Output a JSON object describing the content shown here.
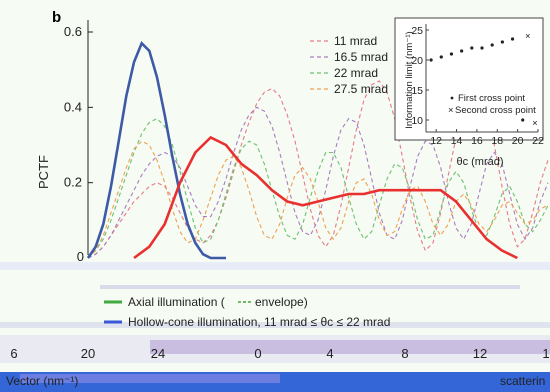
{
  "chart_data": {
    "type": "line",
    "panel_label": "b",
    "ylabel": "PCTF",
    "ylim": [
      0,
      0.6
    ],
    "yticks": [
      0.2,
      0.4,
      0.6
    ],
    "xlim": [
      0,
      30
    ],
    "axis_tick_labels": [
      "6",
      "20",
      "24",
      "0",
      "4",
      "8",
      "12",
      "1"
    ],
    "axis_label": "Vector (nm⁻¹)",
    "axis_label_right": "scatterin",
    "series": [
      {
        "name": "11 mrad",
        "color": "#e87a86",
        "style": "dashed",
        "x": [
          0,
          0.5,
          1,
          1.5,
          2,
          2.5,
          3,
          3.5,
          4,
          4.5,
          5,
          5.5,
          6,
          6.5,
          7,
          7.5,
          8,
          8.5,
          9,
          9.5,
          10,
          10.5,
          11,
          11.5,
          12,
          12.5,
          13,
          13.5,
          14,
          14.5,
          15,
          15.5,
          16,
          16.5,
          17,
          17.5,
          18,
          18.5,
          19,
          19.5,
          20,
          20.5,
          21,
          21.5,
          22,
          22.5,
          23,
          23.5,
          24,
          24.5,
          25,
          25.5,
          26,
          26.5,
          27,
          27.5,
          28,
          28.5,
          29,
          29.5,
          30
        ],
        "y": [
          0,
          0.01,
          0.03,
          0.06,
          0.09,
          0.12,
          0.15,
          0.17,
          0.19,
          0.2,
          0.19,
          0.16,
          0.12,
          0.08,
          0.05,
          0.04,
          0.06,
          0.1,
          0.16,
          0.23,
          0.3,
          0.36,
          0.41,
          0.44,
          0.45,
          0.43,
          0.38,
          0.31,
          0.22,
          0.13,
          0.06,
          0.03,
          0.06,
          0.14,
          0.24,
          0.34,
          0.42,
          0.46,
          0.47,
          0.44,
          0.37,
          0.27,
          0.16,
          0.07,
          0.02,
          0.04,
          0.12,
          0.22,
          0.32,
          0.4,
          0.45,
          0.45,
          0.4,
          0.3,
          0.19,
          0.09,
          0.03,
          0.05,
          0.12,
          0.2,
          0.26
        ]
      },
      {
        "name": "16.5 mrad",
        "color": "#a97cbf",
        "style": "dashed",
        "x": [
          0,
          0.5,
          1,
          1.5,
          2,
          2.5,
          3,
          3.5,
          4,
          4.5,
          5,
          5.5,
          6,
          6.5,
          7,
          7.5,
          8,
          8.5,
          9,
          9.5,
          10,
          10.5,
          11,
          11.5,
          12,
          12.5,
          13,
          13.5,
          14,
          14.5,
          15,
          15.5,
          16,
          16.5,
          17,
          17.5,
          18,
          18.5,
          19,
          19.5,
          20,
          20.5,
          21,
          21.5,
          22,
          22.5,
          23,
          23.5,
          24,
          24.5,
          25,
          25.5,
          26,
          26.5,
          27,
          27.5,
          28,
          28.5,
          29,
          29.5,
          30
        ],
        "y": [
          0,
          0.01,
          0.03,
          0.06,
          0.1,
          0.14,
          0.18,
          0.22,
          0.25,
          0.27,
          0.28,
          0.27,
          0.24,
          0.19,
          0.14,
          0.11,
          0.11,
          0.15,
          0.21,
          0.28,
          0.34,
          0.38,
          0.4,
          0.39,
          0.35,
          0.28,
          0.2,
          0.12,
          0.07,
          0.06,
          0.1,
          0.18,
          0.27,
          0.34,
          0.37,
          0.36,
          0.3,
          0.21,
          0.12,
          0.06,
          0.05,
          0.1,
          0.19,
          0.27,
          0.31,
          0.3,
          0.24,
          0.15,
          0.08,
          0.05,
          0.09,
          0.17,
          0.25,
          0.28,
          0.25,
          0.17,
          0.09,
          0.05,
          0.08,
          0.15,
          0.2
        ]
      },
      {
        "name": "22 mrad",
        "color": "#6cc070",
        "style": "dashed",
        "x": [
          0,
          0.5,
          1,
          1.5,
          2,
          2.5,
          3,
          3.5,
          4,
          4.5,
          5,
          5.5,
          6,
          6.5,
          7,
          7.5,
          8,
          8.5,
          9,
          9.5,
          10,
          10.5,
          11,
          11.5,
          12,
          12.5,
          13,
          13.5,
          14,
          14.5,
          15,
          15.5,
          16,
          16.5,
          17,
          17.5,
          18,
          18.5,
          19,
          19.5,
          20,
          20.5,
          21,
          21.5,
          22,
          22.5,
          23,
          23.5,
          24,
          24.5,
          25,
          25.5,
          26,
          26.5,
          27,
          27.5,
          28,
          28.5,
          29,
          29.5,
          30
        ],
        "y": [
          0,
          0.02,
          0.05,
          0.1,
          0.16,
          0.22,
          0.28,
          0.33,
          0.36,
          0.37,
          0.35,
          0.3,
          0.23,
          0.15,
          0.08,
          0.04,
          0.05,
          0.1,
          0.17,
          0.24,
          0.29,
          0.31,
          0.3,
          0.25,
          0.18,
          0.11,
          0.06,
          0.05,
          0.09,
          0.16,
          0.23,
          0.28,
          0.28,
          0.24,
          0.16,
          0.09,
          0.05,
          0.07,
          0.14,
          0.21,
          0.25,
          0.24,
          0.18,
          0.1,
          0.05,
          0.06,
          0.13,
          0.2,
          0.23,
          0.2,
          0.13,
          0.07,
          0.06,
          0.11,
          0.17,
          0.19,
          0.15,
          0.09,
          0.07,
          0.1,
          0.14
        ]
      },
      {
        "name": "27.5 mrad",
        "color": "#f0a050",
        "style": "dashed",
        "x": [
          0,
          0.5,
          1,
          1.5,
          2,
          2.5,
          3,
          3.5,
          4,
          4.5,
          5,
          5.5,
          6,
          6.5,
          7,
          7.5,
          8,
          8.5,
          9,
          9.5,
          10,
          10.5,
          11,
          11.5,
          12,
          12.5,
          13,
          13.5,
          14,
          14.5,
          15,
          15.5,
          16,
          16.5,
          17,
          17.5,
          18,
          18.5,
          19,
          19.5,
          20,
          20.5,
          21,
          21.5,
          22,
          22.5,
          23,
          23.5,
          24,
          24.5,
          25,
          25.5,
          26,
          26.5,
          27,
          27.5,
          28,
          28.5,
          29,
          29.5,
          30
        ],
        "y": [
          0,
          0.02,
          0.06,
          0.12,
          0.18,
          0.24,
          0.29,
          0.31,
          0.3,
          0.26,
          0.2,
          0.13,
          0.07,
          0.04,
          0.05,
          0.1,
          0.16,
          0.22,
          0.26,
          0.27,
          0.24,
          0.18,
          0.11,
          0.06,
          0.05,
          0.09,
          0.16,
          0.22,
          0.24,
          0.21,
          0.15,
          0.08,
          0.05,
          0.08,
          0.15,
          0.2,
          0.21,
          0.17,
          0.1,
          0.06,
          0.07,
          0.13,
          0.18,
          0.19,
          0.15,
          0.09,
          0.06,
          0.09,
          0.15,
          0.17,
          0.14,
          0.09,
          0.07,
          0.1,
          0.14,
          0.15,
          0.12,
          0.09,
          0.1,
          0.13,
          0.14
        ]
      },
      {
        "name": "Axial illumination",
        "color": "#3c5aa6",
        "style": "solid",
        "x": [
          0,
          0.5,
          1,
          1.5,
          2,
          2.5,
          3,
          3.5,
          4,
          4.5,
          5,
          5.5,
          6,
          6.5,
          7,
          7.5,
          8,
          8.5,
          9
        ],
        "y": [
          0.0,
          0.03,
          0.09,
          0.19,
          0.31,
          0.43,
          0.52,
          0.57,
          0.55,
          0.48,
          0.38,
          0.27,
          0.17,
          0.09,
          0.04,
          0.01,
          0.0,
          0.0,
          0.0
        ]
      },
      {
        "name": "Hollow-cone illumination",
        "color": "#e83030",
        "style": "solid",
        "x": [
          3,
          4,
          5,
          6,
          7,
          8,
          9,
          10,
          11,
          12,
          13,
          14,
          15,
          16,
          17,
          18,
          19,
          20,
          21,
          22,
          23,
          24,
          25,
          26,
          27,
          28
        ],
        "y": [
          0.0,
          0.03,
          0.09,
          0.2,
          0.28,
          0.32,
          0.3,
          0.25,
          0.22,
          0.18,
          0.15,
          0.14,
          0.15,
          0.16,
          0.17,
          0.17,
          0.18,
          0.18,
          0.18,
          0.18,
          0.18,
          0.15,
          0.1,
          0.05,
          0.02,
          0.0
        ]
      }
    ],
    "legend": {
      "placement": "top-right",
      "entries": [
        "11 mrad",
        "16.5 mrad",
        "22 mrad",
        "27.5 mrad"
      ]
    },
    "bottom_legend": {
      "axial": "Axial illumination (",
      "axial_envelope": "envelope)",
      "hollow": "Hollow-cone illumination, 11 mrad ≤ θc ≤ 22 mrad"
    },
    "inset": {
      "type": "scatter",
      "xlabel": "θc (mrad)",
      "ylabel": "Information limit (nm⁻¹)",
      "xlim": [
        11,
        22
      ],
      "ylim": [
        8,
        26
      ],
      "xticks": [
        12,
        14,
        16,
        18,
        20,
        22
      ],
      "yticks": [
        10,
        15,
        20,
        25
      ],
      "series": [
        {
          "name": "First cross point",
          "marker": "dot",
          "x": [
            11.5,
            12.5,
            13.5,
            14.5,
            15.5,
            16.5,
            17.5,
            18.5,
            19.5,
            20.5
          ],
          "y": [
            20.0,
            20.5,
            21.0,
            21.5,
            22.0,
            22.0,
            22.5,
            23.0,
            23.5,
            10.0
          ]
        },
        {
          "name": "Second cross point",
          "marker": "cross",
          "x": [
            21.0,
            21.7
          ],
          "y": [
            24.0,
            9.5
          ]
        }
      ],
      "legend_entries": [
        "First cross point",
        "Second cross point"
      ]
    }
  }
}
